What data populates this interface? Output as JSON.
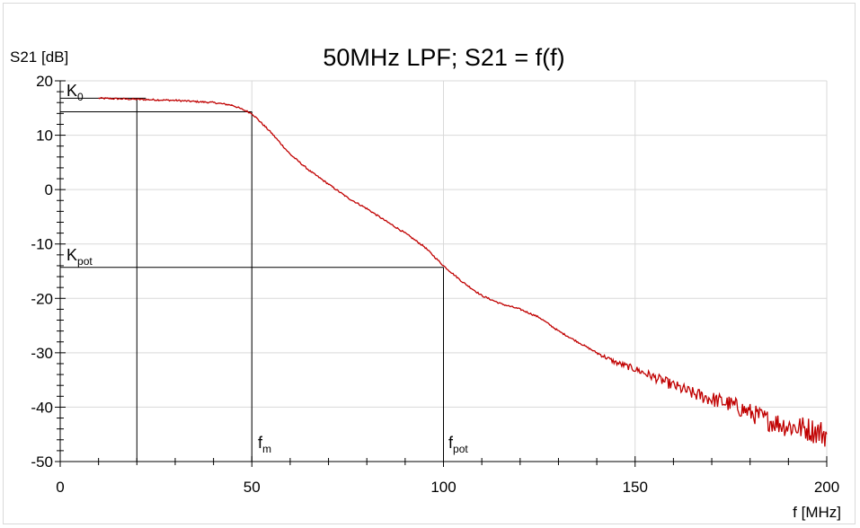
{
  "chart_data": {
    "type": "line",
    "title": "50MHz LPF; S21 = f(f)",
    "xlabel": "f [MHz]",
    "ylabel": "S21 [dB]",
    "xlim": [
      0,
      200
    ],
    "ylim": [
      -50,
      20
    ],
    "x_ticks": [
      0,
      50,
      100,
      150,
      200
    ],
    "y_ticks": [
      -50,
      -40,
      -30,
      -20,
      -10,
      0,
      10,
      20
    ],
    "grid": true,
    "legend": "none",
    "colors": {
      "series": "#c00000",
      "grid": "#d9d9d9",
      "annotation": "#000000"
    },
    "series": [
      {
        "x": [
          10,
          20,
          30,
          40,
          45,
          50,
          55,
          60,
          65,
          70,
          75,
          80,
          85,
          90,
          95,
          100,
          105,
          110,
          115,
          120,
          125,
          130,
          135,
          140,
          145,
          150,
          155,
          160,
          165,
          170,
          175,
          180,
          185,
          190,
          195,
          200
        ],
        "y": [
          16.8,
          16.6,
          16.4,
          16.0,
          15.5,
          14.0,
          10.5,
          6.5,
          3.5,
          1.0,
          -1.5,
          -3.5,
          -5.8,
          -8.0,
          -10.5,
          -14.0,
          -17.0,
          -19.5,
          -21.0,
          -22.0,
          -23.5,
          -26.0,
          -28.0,
          -30.0,
          -31.8,
          -33.0,
          -34.5,
          -36.0,
          -37.5,
          -38.5,
          -39.5,
          -41.0,
          -42.5,
          -43.5,
          -44.0,
          -45.0
        ]
      }
    ],
    "annotations": {
      "k0": {
        "main": "K",
        "sub": "0",
        "y": 16.8
      },
      "k0_ref_y": 14.3,
      "kpot": {
        "main": "K",
        "sub": "pot",
        "y": -14.3
      },
      "fm": {
        "main": "f",
        "sub": "m",
        "x": 50
      },
      "fpot": {
        "main": "f",
        "sub": "pot",
        "x": 100
      },
      "vline_x": 20
    }
  }
}
